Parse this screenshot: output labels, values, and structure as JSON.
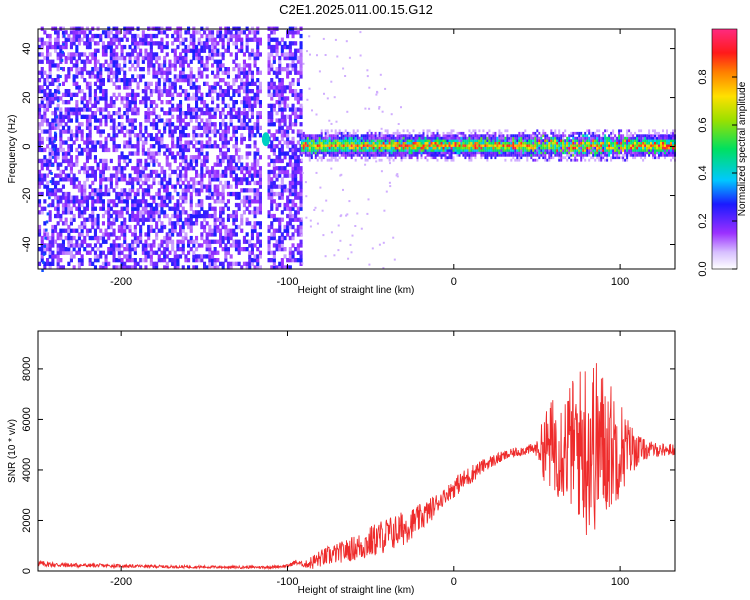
{
  "title": "C2E1.2025.011.00.15.G12",
  "colorbar": {
    "label": "Normalized spectral amplitude",
    "range": [
      0,
      1
    ],
    "ticks": [
      0.0,
      0.2,
      0.4,
      0.6,
      0.8
    ],
    "tick_labels": [
      "0.0",
      "0.2",
      "0.4",
      "0.6",
      "0.8"
    ]
  },
  "chart_data": [
    {
      "type": "heatmap",
      "xlabel": "Height of straight line (km)",
      "ylabel": "Frequency (Hz)",
      "xlim": [
        -250,
        133
      ],
      "ylim": [
        -50,
        48
      ],
      "x_ticks": [
        -200,
        -100,
        0,
        100
      ],
      "x_tick_labels": [
        "-200",
        "-100",
        "0",
        "100"
      ],
      "y_ticks": [
        -40,
        -20,
        0,
        20,
        40
      ],
      "y_tick_labels": [
        "-40",
        "-20",
        "0",
        "20",
        "40"
      ],
      "colormap": "rainbow, white at 0 through violet, blue, cyan, green, yellow, red, magenta at 1",
      "regions": [
        {
          "x": [
            -250,
            -117
          ],
          "freq": [
            -50,
            48
          ],
          "amplitude": "0.05-0.3 noise"
        },
        {
          "x": [
            -112,
            -92
          ],
          "freq": [
            -50,
            48
          ],
          "amplitude": "0.05-0.3 noise"
        },
        {
          "x": [
            -92,
            133
          ],
          "freq": [
            -5,
            5
          ],
          "amplitude": "0.3-1.0 narrow band centred near 0 Hz"
        }
      ]
    },
    {
      "type": "line",
      "xlabel": "Height of straight line (km)",
      "ylabel": "SNR (10 * v/v)",
      "xlim": [
        -250,
        133
      ],
      "ylim": [
        0,
        9500
      ],
      "x_ticks": [
        -200,
        -100,
        0,
        100
      ],
      "x_tick_labels": [
        "-200",
        "-100",
        "0",
        "100"
      ],
      "y_ticks": [
        0,
        2000,
        4000,
        6000,
        8000
      ],
      "y_tick_labels": [
        "0",
        "2000",
        "4000",
        "6000",
        "8000"
      ],
      "color": "#ee2b2b",
      "series": [
        {
          "x": [
            -250,
            -240,
            -230,
            -220,
            -210,
            -200,
            -190,
            -180,
            -170,
            -160,
            -150,
            -140,
            -130,
            -120,
            -110,
            -100,
            -95,
            -90,
            -85,
            -80,
            -75,
            -70,
            -65,
            -60,
            -55,
            -50,
            -45,
            -40,
            -35,
            -30,
            -25,
            -20,
            -15,
            -10,
            -5,
            0,
            5,
            10,
            15,
            20,
            25,
            30,
            35,
            40,
            45,
            50,
            55,
            60,
            65,
            70,
            75,
            80,
            85,
            90,
            95,
            100,
            105,
            110,
            115,
            120,
            125,
            130,
            133
          ],
          "y": [
            300,
            250,
            230,
            220,
            210,
            200,
            190,
            180,
            170,
            165,
            160,
            155,
            150,
            150,
            155,
            200,
            350,
            250,
            350,
            500,
            600,
            700,
            800,
            900,
            1000,
            1150,
            1300,
            1450,
            1550,
            1700,
            1900,
            2100,
            2350,
            2700,
            3000,
            3300,
            3550,
            3800,
            4050,
            4250,
            4400,
            4550,
            4650,
            4750,
            4800,
            4850,
            4900,
            4950,
            5000,
            5000,
            5000,
            5000,
            5000,
            5000,
            4950,
            4900,
            4850,
            4800,
            4800,
            4800,
            4800,
            4800,
            4800
          ],
          "noise_amplitude": [
            120,
            100,
            90,
            80,
            70,
            60,
            60,
            55,
            55,
            55,
            55,
            55,
            55,
            55,
            55,
            60,
            100,
            100,
            300,
            350,
            400,
            400,
            450,
            500,
            600,
            650,
            700,
            700,
            700,
            700,
            600,
            550,
            500,
            400,
            300,
            400,
            400,
            400,
            300,
            250,
            250,
            200,
            200,
            200,
            200,
            300,
            1500,
            2000,
            2200,
            2500,
            3000,
            3800,
            3500,
            3000,
            2500,
            2000,
            1200,
            700,
            400,
            300,
            250,
            250,
            250
          ]
        }
      ]
    }
  ]
}
